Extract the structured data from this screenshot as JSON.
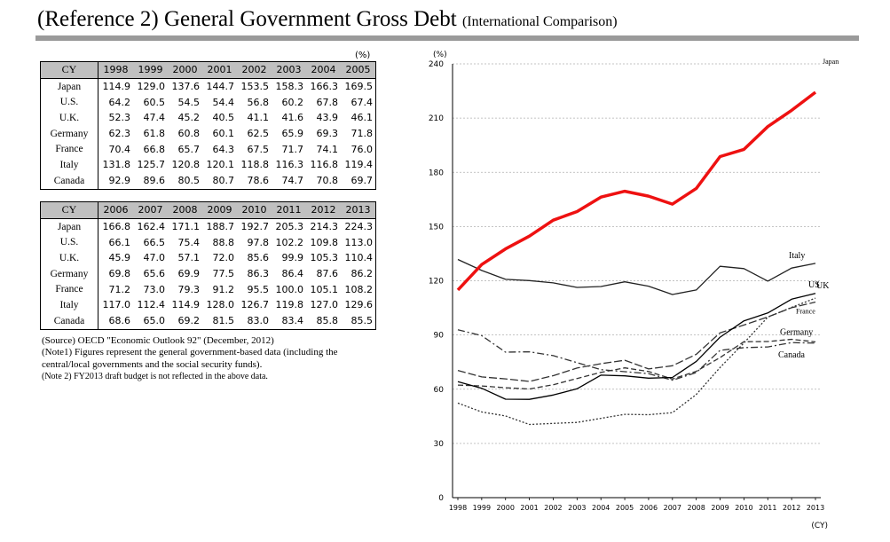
{
  "header": {
    "title": "(Reference 2) General Government Gross Debt",
    "subtitle": "(International Comparison)"
  },
  "table": {
    "unit": "(%)",
    "header_label": "CY",
    "blocks": [
      {
        "years": [
          "1998",
          "1999",
          "2000",
          "2001",
          "2002",
          "2003",
          "2004",
          "2005"
        ],
        "rows": [
          {
            "country": "Japan",
            "values": [
              "114.9",
              "129.0",
              "137.6",
              "144.7",
              "153.5",
              "158.3",
              "166.3",
              "169.5"
            ]
          },
          {
            "country": "U.S.",
            "values": [
              "64.2",
              "60.5",
              "54.5",
              "54.4",
              "56.8",
              "60.2",
              "67.8",
              "67.4"
            ]
          },
          {
            "country": "U.K.",
            "values": [
              "52.3",
              "47.4",
              "45.2",
              "40.5",
              "41.1",
              "41.6",
              "43.9",
              "46.1"
            ]
          },
          {
            "country": "Germany",
            "values": [
              "62.3",
              "61.8",
              "60.8",
              "60.1",
              "62.5",
              "65.9",
              "69.3",
              "71.8"
            ]
          },
          {
            "country": "France",
            "values": [
              "70.4",
              "66.8",
              "65.7",
              "64.3",
              "67.5",
              "71.7",
              "74.1",
              "76.0"
            ]
          },
          {
            "country": "Italy",
            "values": [
              "131.8",
              "125.7",
              "120.8",
              "120.1",
              "118.8",
              "116.3",
              "116.8",
              "119.4"
            ]
          },
          {
            "country": "Canada",
            "values": [
              "92.9",
              "89.6",
              "80.5",
              "80.7",
              "78.6",
              "74.7",
              "70.8",
              "69.7"
            ]
          }
        ]
      },
      {
        "years": [
          "2006",
          "2007",
          "2008",
          "2009",
          "2010",
          "2011",
          "2012",
          "2013"
        ],
        "rows": [
          {
            "country": "Japan",
            "values": [
              "166.8",
              "162.4",
              "171.1",
              "188.7",
              "192.7",
              "205.3",
              "214.3",
              "224.3"
            ]
          },
          {
            "country": "U.S.",
            "values": [
              "66.1",
              "66.5",
              "75.4",
              "88.8",
              "97.8",
              "102.2",
              "109.8",
              "113.0"
            ]
          },
          {
            "country": "U.K.",
            "values": [
              "45.9",
              "47.0",
              "57.1",
              "72.0",
              "85.6",
              "99.9",
              "105.3",
              "110.4"
            ]
          },
          {
            "country": "Germany",
            "values": [
              "69.8",
              "65.6",
              "69.9",
              "77.5",
              "86.3",
              "86.4",
              "87.6",
              "86.2"
            ]
          },
          {
            "country": "France",
            "values": [
              "71.2",
              "73.0",
              "79.3",
              "91.2",
              "95.5",
              "100.0",
              "105.1",
              "108.2"
            ]
          },
          {
            "country": "Italy",
            "values": [
              "117.0",
              "112.4",
              "114.9",
              "128.0",
              "126.7",
              "119.8",
              "127.0",
              "129.6"
            ]
          },
          {
            "country": "Canada",
            "values": [
              "68.6",
              "65.0",
              "69.2",
              "81.5",
              "83.0",
              "83.4",
              "85.8",
              "85.5"
            ]
          }
        ]
      }
    ]
  },
  "notes": {
    "source": "(Source) OECD \"Economic Outlook 92\" (December, 2012)",
    "note1": "(Note1) Figures represent the general government-based data (including the central/local governments and the social security funds).",
    "note2": "(Note 2) FY2013 draft budget is not reflected in the above data."
  },
  "chart_data": {
    "type": "line",
    "y_unit_label": "(%)",
    "x_unit_label": "(CY)",
    "ylim": [
      0,
      240
    ],
    "yticks": [
      0,
      30,
      60,
      90,
      120,
      150,
      180,
      210,
      240
    ],
    "grid": "horizontal-dashed",
    "x": [
      "1998",
      "1999",
      "2000",
      "2001",
      "2002",
      "2003",
      "2004",
      "2005",
      "2006",
      "2007",
      "2008",
      "2009",
      "2010",
      "2011",
      "2012",
      "2013"
    ],
    "series": [
      {
        "name": "Japan",
        "label": "Japan",
        "color": "#ee1111",
        "style": "solid",
        "width": 3.5,
        "values": [
          114.9,
          129.0,
          137.6,
          144.7,
          153.5,
          158.3,
          166.3,
          169.5,
          166.8,
          162.4,
          171.1,
          188.7,
          192.7,
          205.3,
          214.3,
          224.3
        ]
      },
      {
        "name": "Italy",
        "label": "Italy",
        "color": "#222222",
        "style": "solid",
        "width": 1.3,
        "values": [
          131.8,
          125.7,
          120.8,
          120.1,
          118.8,
          116.3,
          116.8,
          119.4,
          117.0,
          112.4,
          114.9,
          128.0,
          126.7,
          119.8,
          127.0,
          129.6
        ]
      },
      {
        "name": "U.S.",
        "label": "US",
        "color": "#000000",
        "style": "solid",
        "width": 1.3,
        "values": [
          64.2,
          60.5,
          54.5,
          54.4,
          56.8,
          60.2,
          67.8,
          67.4,
          66.1,
          66.5,
          75.4,
          88.8,
          97.8,
          102.2,
          109.8,
          113.0
        ]
      },
      {
        "name": "U.K.",
        "label": "UK",
        "color": "#333333",
        "style": "dotted",
        "width": 1.3,
        "values": [
          52.3,
          47.4,
          45.2,
          40.5,
          41.1,
          41.6,
          43.9,
          46.1,
          45.9,
          47.0,
          57.1,
          72.0,
          85.6,
          99.9,
          105.3,
          110.4
        ]
      },
      {
        "name": "France",
        "label": "France",
        "color": "#333333",
        "style": "longdash",
        "width": 1.3,
        "values": [
          70.4,
          66.8,
          65.7,
          64.3,
          67.5,
          71.7,
          74.1,
          76.0,
          71.2,
          73.0,
          79.3,
          91.2,
          95.5,
          100.0,
          105.1,
          108.2
        ]
      },
      {
        "name": "Germany",
        "label": "Germany",
        "color": "#333333",
        "style": "dash",
        "width": 1.3,
        "values": [
          62.3,
          61.8,
          60.8,
          60.1,
          62.5,
          65.9,
          69.3,
          71.8,
          69.8,
          65.6,
          69.9,
          77.5,
          86.3,
          86.4,
          87.6,
          86.2
        ]
      },
      {
        "name": "Canada",
        "label": "Canada",
        "color": "#333333",
        "style": "dashdot",
        "width": 1.3,
        "values": [
          92.9,
          89.6,
          80.5,
          80.7,
          78.6,
          74.7,
          70.8,
          69.7,
          68.6,
          65.0,
          69.2,
          81.5,
          83.0,
          83.4,
          85.8,
          85.5
        ]
      }
    ]
  }
}
